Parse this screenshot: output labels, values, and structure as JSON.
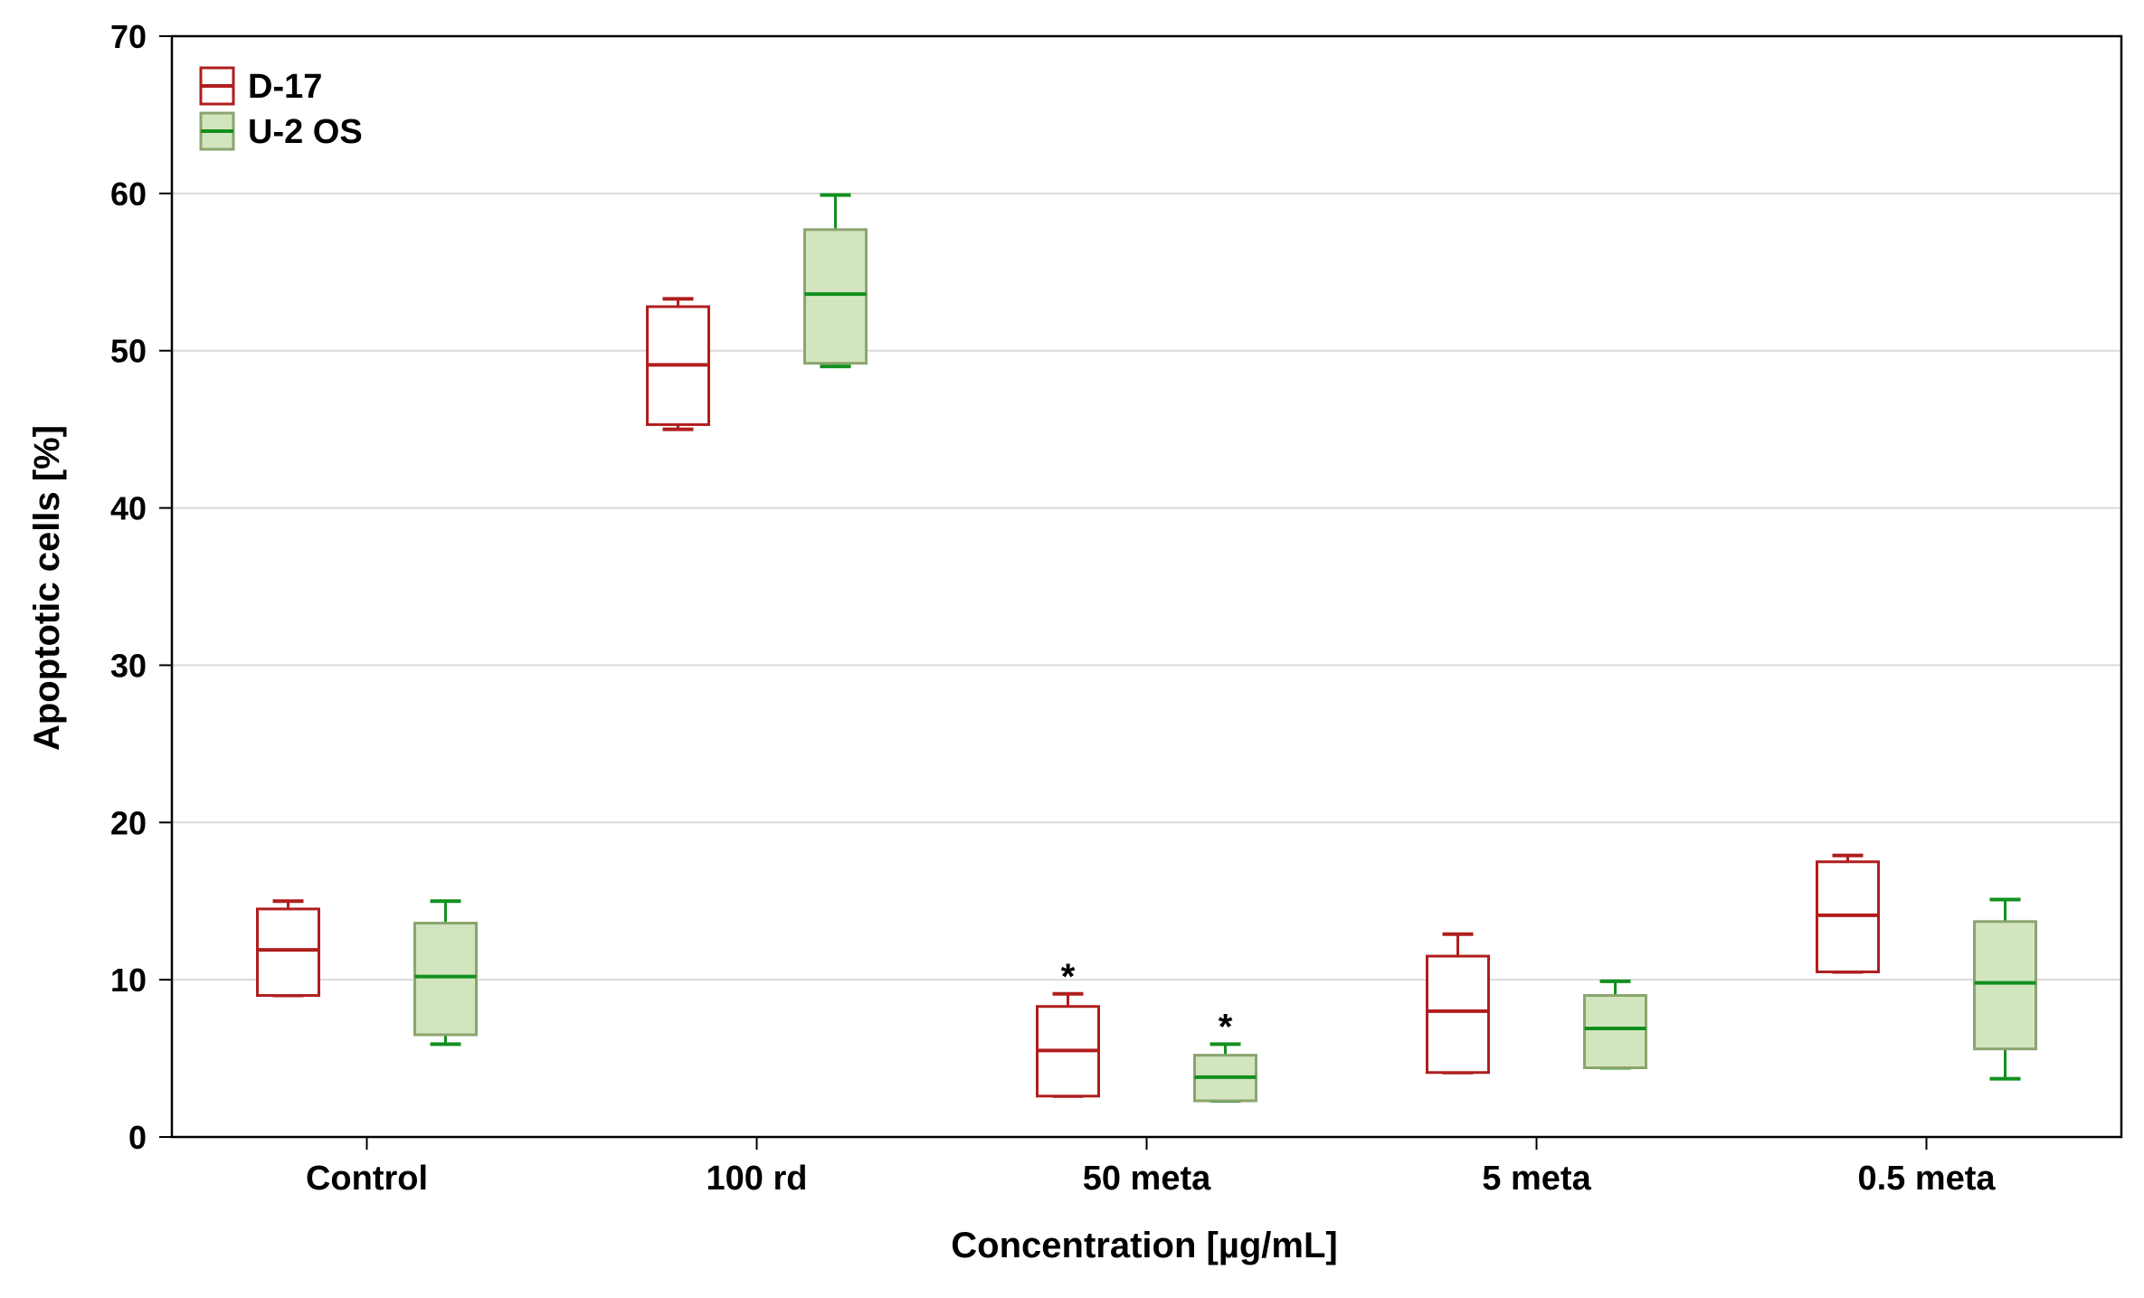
{
  "chart_data": {
    "type": "box",
    "title": "",
    "xlabel": "Concentration [µg/mL]",
    "ylabel": "Apoptotic cells [%]",
    "ylim": [
      0,
      70
    ],
    "yticks": [
      0,
      10,
      20,
      30,
      40,
      50,
      60,
      70
    ],
    "grid": true,
    "legend_position": "top-left",
    "categories": [
      "Control",
      "100 rd",
      "50 meta",
      "5 meta",
      "0.5 meta"
    ],
    "series": [
      {
        "name": "D-17",
        "color": "#b01e1e",
        "fill": "#ffffff",
        "boxes": [
          {
            "min": 9.0,
            "q1": 9.0,
            "median": 11.9,
            "q3": 14.5,
            "max": 15.0
          },
          {
            "min": 45.0,
            "q1": 45.3,
            "median": 49.1,
            "q3": 52.8,
            "max": 53.3
          },
          {
            "min": 2.6,
            "q1": 2.6,
            "median": 5.5,
            "q3": 8.3,
            "max": 9.1
          },
          {
            "min": 4.1,
            "q1": 4.1,
            "median": 8.0,
            "q3": 11.5,
            "max": 12.9
          },
          {
            "min": 10.5,
            "q1": 10.5,
            "median": 14.1,
            "q3": 17.5,
            "max": 17.9
          }
        ]
      },
      {
        "name": "U-2 OS",
        "color": "#12901e",
        "fill": "#d3e5bf",
        "boxes": [
          {
            "min": 5.9,
            "q1": 6.5,
            "median": 10.2,
            "q3": 13.6,
            "max": 15.0
          },
          {
            "min": 49.0,
            "q1": 49.2,
            "median": 53.6,
            "q3": 57.7,
            "max": 59.9
          },
          {
            "min": 2.3,
            "q1": 2.3,
            "median": 3.8,
            "q3": 5.2,
            "max": 5.9
          },
          {
            "min": 4.4,
            "q1": 4.4,
            "median": 6.9,
            "q3": 9.0,
            "max": 9.9
          },
          {
            "min": 3.7,
            "q1": 5.6,
            "median": 9.8,
            "q3": 13.7,
            "max": 15.1
          }
        ]
      }
    ],
    "annotations": [
      {
        "text": "*",
        "series": "D-17",
        "category": "50 meta"
      },
      {
        "text": "*",
        "series": "U-2 OS",
        "category": "50 meta"
      }
    ]
  }
}
